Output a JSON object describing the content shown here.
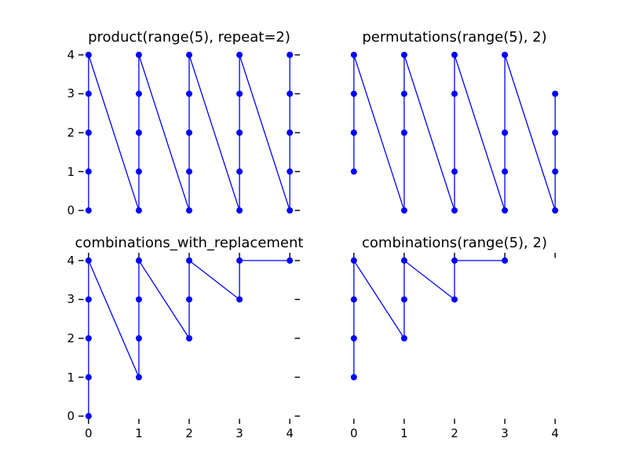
{
  "figure": {
    "background": "#ffffff",
    "text_color": "#000000",
    "tick_color": "#000000",
    "accent_color": "#0000ff"
  },
  "chart_data": [
    {
      "type": "line",
      "title": "product(range(5), repeat=2)",
      "xlabel": "",
      "ylabel": "",
      "xlim": [
        -0.2,
        4.2
      ],
      "ylim": [
        -0.2,
        4.2
      ],
      "grid": false,
      "legend": null,
      "line_color": "#0000ff",
      "marker": "circle",
      "marker_color": "#0000ff",
      "xticks": {
        "values": [
          0,
          1,
          2,
          3,
          4
        ],
        "sides": [],
        "show_labels": false
      },
      "yticks": {
        "values": [
          0,
          1,
          2,
          3,
          4
        ],
        "sides": [
          "left",
          "right"
        ],
        "show_labels": true
      },
      "points": [
        [
          0,
          0
        ],
        [
          0,
          1
        ],
        [
          0,
          2
        ],
        [
          0,
          3
        ],
        [
          0,
          4
        ],
        [
          1,
          0
        ],
        [
          1,
          1
        ],
        [
          1,
          2
        ],
        [
          1,
          3
        ],
        [
          1,
          4
        ],
        [
          2,
          0
        ],
        [
          2,
          1
        ],
        [
          2,
          2
        ],
        [
          2,
          3
        ],
        [
          2,
          4
        ],
        [
          3,
          0
        ],
        [
          3,
          1
        ],
        [
          3,
          2
        ],
        [
          3,
          3
        ],
        [
          3,
          4
        ],
        [
          4,
          0
        ],
        [
          4,
          1
        ],
        [
          4,
          2
        ],
        [
          4,
          3
        ],
        [
          4,
          4
        ]
      ]
    },
    {
      "type": "line",
      "title": "permutations(range(5), 2)",
      "xlabel": "",
      "ylabel": "",
      "xlim": [
        -0.2,
        4.2
      ],
      "ylim": [
        -0.2,
        4.2
      ],
      "grid": false,
      "legend": null,
      "line_color": "#0000ff",
      "marker": "circle",
      "marker_color": "#0000ff",
      "xticks": {
        "values": [
          0,
          1,
          2,
          3,
          4
        ],
        "sides": [],
        "show_labels": false
      },
      "yticks": {
        "values": [
          0,
          1,
          2,
          3,
          4
        ],
        "sides": [],
        "show_labels": false
      },
      "points": [
        [
          0,
          1
        ],
        [
          0,
          2
        ],
        [
          0,
          3
        ],
        [
          0,
          4
        ],
        [
          1,
          0
        ],
        [
          1,
          2
        ],
        [
          1,
          3
        ],
        [
          1,
          4
        ],
        [
          2,
          0
        ],
        [
          2,
          1
        ],
        [
          2,
          3
        ],
        [
          2,
          4
        ],
        [
          3,
          0
        ],
        [
          3,
          1
        ],
        [
          3,
          2
        ],
        [
          3,
          4
        ],
        [
          4,
          0
        ],
        [
          4,
          1
        ],
        [
          4,
          2
        ],
        [
          4,
          3
        ]
      ]
    },
    {
      "type": "line",
      "title": "combinations_with_replacement",
      "xlabel": "",
      "ylabel": "",
      "xlim": [
        -0.2,
        4.2
      ],
      "ylim": [
        -0.2,
        4.2
      ],
      "grid": false,
      "legend": null,
      "line_color": "#0000ff",
      "marker": "circle",
      "marker_color": "#0000ff",
      "xticks": {
        "values": [
          0,
          1,
          2,
          3,
          4
        ],
        "sides": [
          "top",
          "bottom"
        ],
        "show_labels": true
      },
      "yticks": {
        "values": [
          0,
          1,
          2,
          3,
          4
        ],
        "sides": [
          "left",
          "right"
        ],
        "show_labels": true
      },
      "points": [
        [
          0,
          0
        ],
        [
          0,
          1
        ],
        [
          0,
          2
        ],
        [
          0,
          3
        ],
        [
          0,
          4
        ],
        [
          1,
          1
        ],
        [
          1,
          2
        ],
        [
          1,
          3
        ],
        [
          1,
          4
        ],
        [
          2,
          2
        ],
        [
          2,
          3
        ],
        [
          2,
          4
        ],
        [
          3,
          3
        ],
        [
          3,
          4
        ],
        [
          4,
          4
        ]
      ]
    },
    {
      "type": "line",
      "title": "combinations(range(5), 2)",
      "xlabel": "",
      "ylabel": "",
      "xlim": [
        -0.2,
        4.2
      ],
      "ylim": [
        -0.2,
        4.2
      ],
      "grid": false,
      "legend": null,
      "line_color": "#0000ff",
      "marker": "circle",
      "marker_color": "#0000ff",
      "xticks": {
        "values": [
          0,
          1,
          2,
          3,
          4
        ],
        "sides": [
          "top",
          "bottom"
        ],
        "show_labels": true
      },
      "yticks": {
        "values": [
          0,
          1,
          2,
          3,
          4
        ],
        "sides": [],
        "show_labels": false
      },
      "points": [
        [
          0,
          1
        ],
        [
          0,
          2
        ],
        [
          0,
          3
        ],
        [
          0,
          4
        ],
        [
          1,
          2
        ],
        [
          1,
          3
        ],
        [
          1,
          4
        ],
        [
          2,
          3
        ],
        [
          2,
          4
        ],
        [
          3,
          4
        ]
      ]
    }
  ]
}
